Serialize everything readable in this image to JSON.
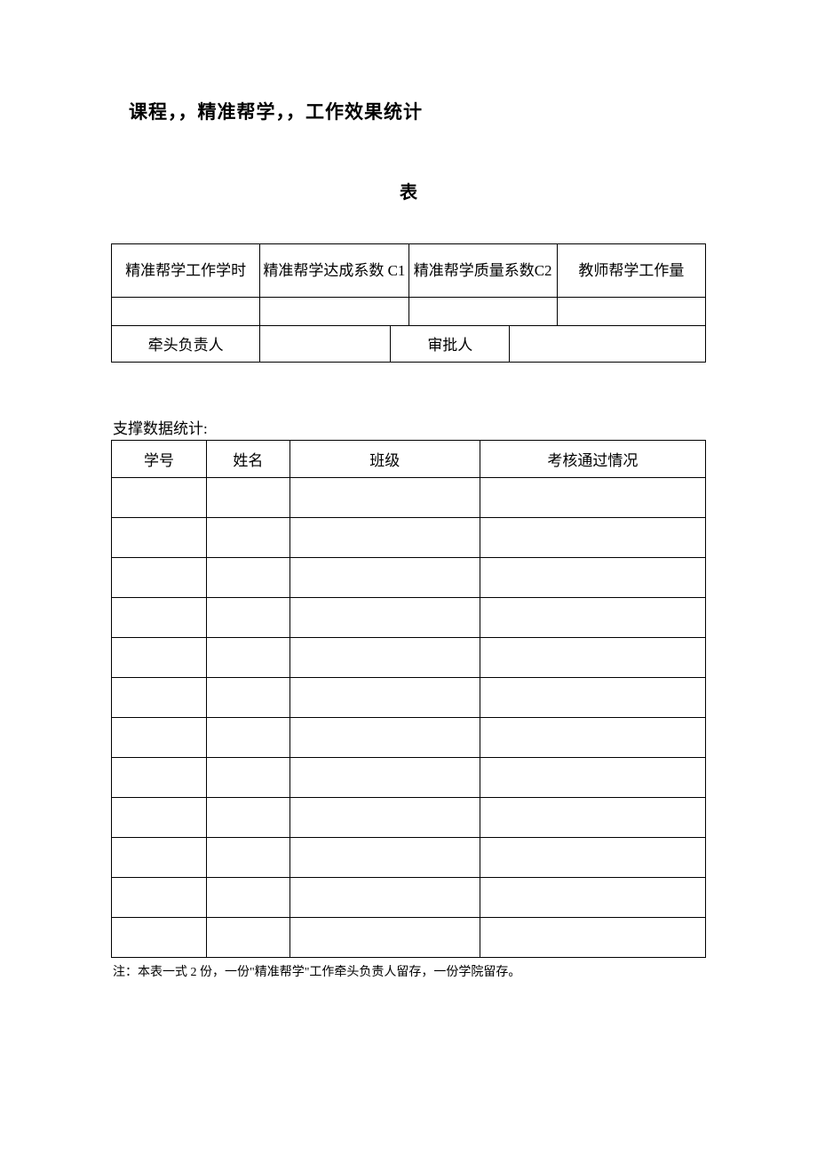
{
  "title": "课程，，精准帮学，，工作效果统计",
  "subtitle": "表",
  "table1": {
    "headers": {
      "col1": "精准帮学工作学时",
      "col2": "精准帮学达成系数 C1",
      "col3": "精准帮学质量系数C2",
      "col4": "教师帮学工作量"
    },
    "data_row": [
      "",
      "",
      "",
      ""
    ],
    "sign_row": {
      "label1": "牵头负责人",
      "value1": "",
      "label2": "审批人",
      "value2": ""
    }
  },
  "section_label": "支撑数据统计:",
  "table2": {
    "headers": {
      "id": "学号",
      "name": "姓名",
      "class": "班级",
      "status": "考核通过情况"
    },
    "rows": [
      [
        "",
        "",
        "",
        ""
      ],
      [
        "",
        "",
        "",
        ""
      ],
      [
        "",
        "",
        "",
        ""
      ],
      [
        "",
        "",
        "",
        ""
      ],
      [
        "",
        "",
        "",
        ""
      ],
      [
        "",
        "",
        "",
        ""
      ],
      [
        "",
        "",
        "",
        ""
      ],
      [
        "",
        "",
        "",
        ""
      ],
      [
        "",
        "",
        "",
        ""
      ],
      [
        "",
        "",
        "",
        ""
      ],
      [
        "",
        "",
        "",
        ""
      ],
      [
        "",
        "",
        "",
        ""
      ]
    ]
  },
  "footnote": "注：本表一式 2 份，一份\"精准帮学\"工作牵头负责人留存，一份学院留存。",
  "table1_col_widths": [
    "25%",
    "25%",
    "25%",
    "25%"
  ],
  "sign_col_widths": [
    "25%",
    "22%",
    "20%",
    "33%"
  ]
}
